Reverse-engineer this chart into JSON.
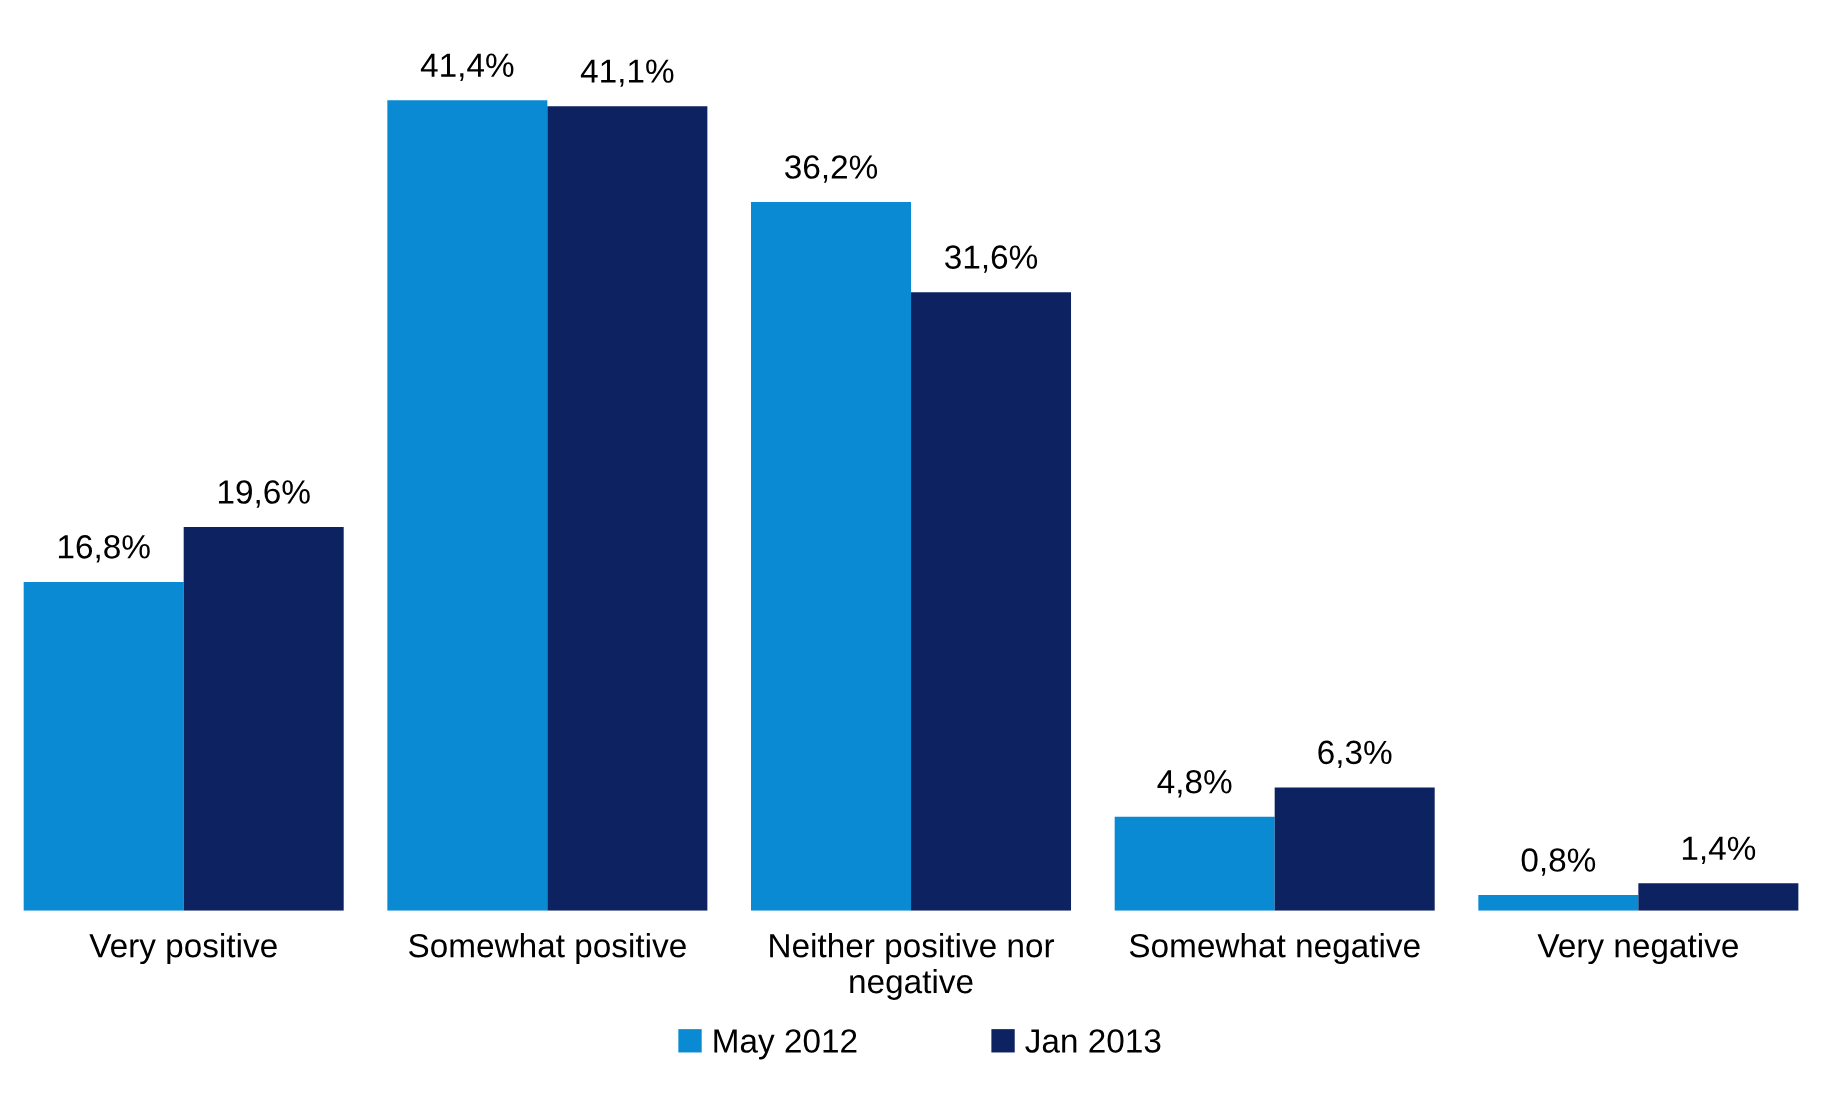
{
  "chart_data": {
    "type": "bar",
    "categories": [
      "Very positive",
      "Somewhat positive",
      "Neither positive nor\nnegative",
      "Somewhat negative",
      "Very negative"
    ],
    "series": [
      {
        "name": "May 2012",
        "color": "#0a8ad2",
        "values": [
          16.8,
          41.4,
          36.2,
          4.8,
          0.8
        ],
        "value_labels": [
          "16,8%",
          "41,4%",
          "36,2%",
          "4,8%",
          "0,8%"
        ]
      },
      {
        "name": "Jan 2013",
        "color": "#0d2260",
        "values": [
          19.6,
          41.1,
          31.6,
          6.3,
          1.4
        ],
        "value_labels": [
          "19,6%",
          "41,1%",
          "31,6%",
          "6,3%",
          "1,4%"
        ]
      }
    ],
    "legend": "bottom",
    "grid": false,
    "tick_labels": "x"
  }
}
